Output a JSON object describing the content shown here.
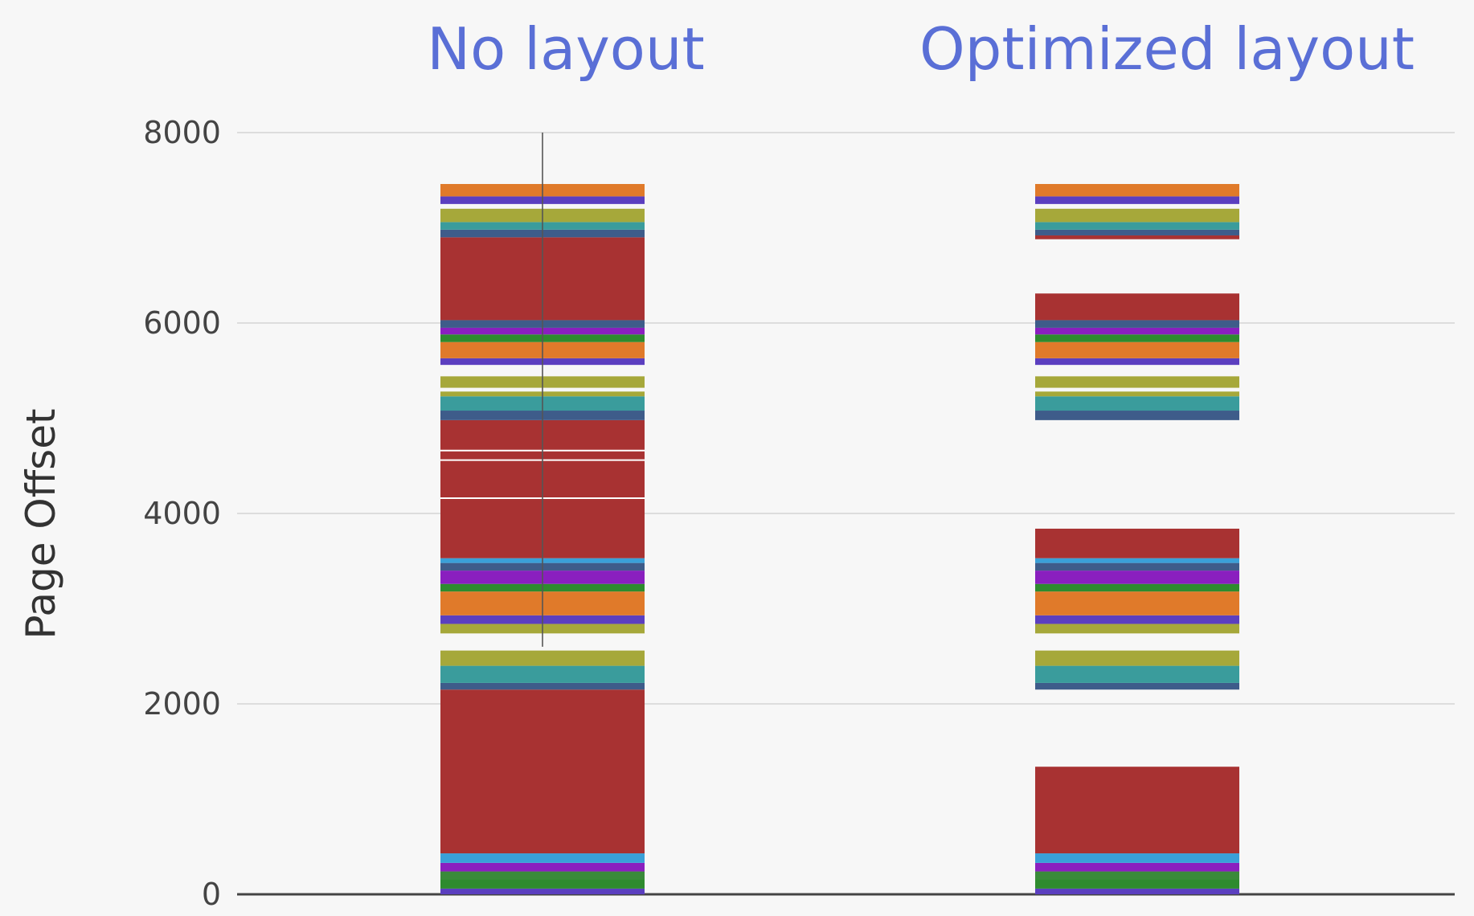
{
  "chart_data": {
    "type": "bar",
    "ylabel": "Page Offset",
    "ylim": [
      0,
      8000
    ],
    "y_ticks": [
      0,
      2000,
      4000,
      6000,
      8000
    ],
    "y_tick_labels": [
      "0",
      "2000",
      "4000",
      "6000",
      "8000"
    ],
    "grid": true,
    "categories": [
      "No layout",
      "Optimized layout"
    ],
    "columns": [
      {
        "title": "No layout",
        "touched_pages": [
          {
            "from": 0,
            "to": 60,
            "color": "#5b3fbf"
          },
          {
            "from": 60,
            "to": 160,
            "color": "#2e8b2e"
          },
          {
            "from": 160,
            "to": 240,
            "color": "#3a8a3a"
          },
          {
            "from": 240,
            "to": 330,
            "color": "#8a1fbf"
          },
          {
            "from": 330,
            "to": 430,
            "color": "#3aa0d8"
          },
          {
            "from": 430,
            "to": 2150,
            "color": "#a83232"
          },
          {
            "from": 2150,
            "to": 2220,
            "color": "#3e5c8a"
          },
          {
            "from": 2220,
            "to": 2400,
            "color": "#3a9c9c"
          },
          {
            "from": 2400,
            "to": 2560,
            "color": "#a6a83a"
          },
          {
            "from": 2740,
            "to": 2840,
            "color": "#a6a83a"
          },
          {
            "from": 2840,
            "to": 2930,
            "color": "#5b3fbf"
          },
          {
            "from": 2930,
            "to": 3180,
            "color": "#e07a2a"
          },
          {
            "from": 3180,
            "to": 3260,
            "color": "#2e8b2e"
          },
          {
            "from": 3260,
            "to": 3400,
            "color": "#8a1fbf"
          },
          {
            "from": 3400,
            "to": 3480,
            "color": "#3e5c8a"
          },
          {
            "from": 3480,
            "to": 3530,
            "color": "#3aa0d8"
          },
          {
            "from": 3530,
            "to": 4980,
            "color": "#a83232"
          },
          {
            "from": 4980,
            "to": 5080,
            "color": "#3e5c8a"
          },
          {
            "from": 5080,
            "to": 5230,
            "color": "#3a9c9c"
          },
          {
            "from": 5230,
            "to": 5280,
            "color": "#a6a83a"
          },
          {
            "from": 5320,
            "to": 5440,
            "color": "#a6a83a"
          },
          {
            "from": 5560,
            "to": 5630,
            "color": "#5b3fbf"
          },
          {
            "from": 5630,
            "to": 5800,
            "color": "#e07a2a"
          },
          {
            "from": 5800,
            "to": 5880,
            "color": "#2e8b2e"
          },
          {
            "from": 5880,
            "to": 5950,
            "color": "#8a1fbf"
          },
          {
            "from": 5950,
            "to": 6030,
            "color": "#3e5c8a"
          },
          {
            "from": 6030,
            "to": 6900,
            "color": "#a83232"
          },
          {
            "from": 6900,
            "to": 6980,
            "color": "#3e5c8a"
          },
          {
            "from": 6980,
            "to": 7060,
            "color": "#3a9c9c"
          },
          {
            "from": 7060,
            "to": 7200,
            "color": "#a6a83a"
          },
          {
            "from": 7250,
            "to": 7330,
            "color": "#5b3fbf"
          },
          {
            "from": 7330,
            "to": 7460,
            "color": "#e07a2a"
          }
        ]
      },
      {
        "title": "Optimized layout",
        "touched_pages": [
          {
            "from": 0,
            "to": 60,
            "color": "#5b3fbf"
          },
          {
            "from": 60,
            "to": 160,
            "color": "#2e8b2e"
          },
          {
            "from": 160,
            "to": 240,
            "color": "#3a8a3a"
          },
          {
            "from": 240,
            "to": 330,
            "color": "#8a1fbf"
          },
          {
            "from": 330,
            "to": 430,
            "color": "#3aa0d8"
          },
          {
            "from": 430,
            "to": 1340,
            "color": "#a83232"
          },
          {
            "from": 2150,
            "to": 2220,
            "color": "#3e5c8a"
          },
          {
            "from": 2220,
            "to": 2400,
            "color": "#3a9c9c"
          },
          {
            "from": 2400,
            "to": 2560,
            "color": "#a6a83a"
          },
          {
            "from": 2740,
            "to": 2840,
            "color": "#a6a83a"
          },
          {
            "from": 2840,
            "to": 2930,
            "color": "#5b3fbf"
          },
          {
            "from": 2930,
            "to": 3180,
            "color": "#e07a2a"
          },
          {
            "from": 3180,
            "to": 3260,
            "color": "#2e8b2e"
          },
          {
            "from": 3260,
            "to": 3400,
            "color": "#8a1fbf"
          },
          {
            "from": 3400,
            "to": 3480,
            "color": "#3e5c8a"
          },
          {
            "from": 3480,
            "to": 3530,
            "color": "#3aa0d8"
          },
          {
            "from": 3530,
            "to": 3840,
            "color": "#a83232"
          },
          {
            "from": 4980,
            "to": 5080,
            "color": "#3e5c8a"
          },
          {
            "from": 5080,
            "to": 5230,
            "color": "#3a9c9c"
          },
          {
            "from": 5230,
            "to": 5280,
            "color": "#a6a83a"
          },
          {
            "from": 5320,
            "to": 5440,
            "color": "#a6a83a"
          },
          {
            "from": 5560,
            "to": 5630,
            "color": "#5b3fbf"
          },
          {
            "from": 5630,
            "to": 5800,
            "color": "#e07a2a"
          },
          {
            "from": 5800,
            "to": 5880,
            "color": "#2e8b2e"
          },
          {
            "from": 5880,
            "to": 5950,
            "color": "#8a1fbf"
          },
          {
            "from": 5950,
            "to": 6030,
            "color": "#3e5c8a"
          },
          {
            "from": 6030,
            "to": 6310,
            "color": "#a83232"
          },
          {
            "from": 6880,
            "to": 6920,
            "color": "#a83232"
          },
          {
            "from": 6920,
            "to": 6980,
            "color": "#3e5c8a"
          },
          {
            "from": 6980,
            "to": 7060,
            "color": "#3a9c9c"
          },
          {
            "from": 7060,
            "to": 7200,
            "color": "#a6a83a"
          },
          {
            "from": 7250,
            "to": 7330,
            "color": "#5b3fbf"
          },
          {
            "from": 7330,
            "to": 7460,
            "color": "#e07a2a"
          }
        ]
      }
    ]
  }
}
